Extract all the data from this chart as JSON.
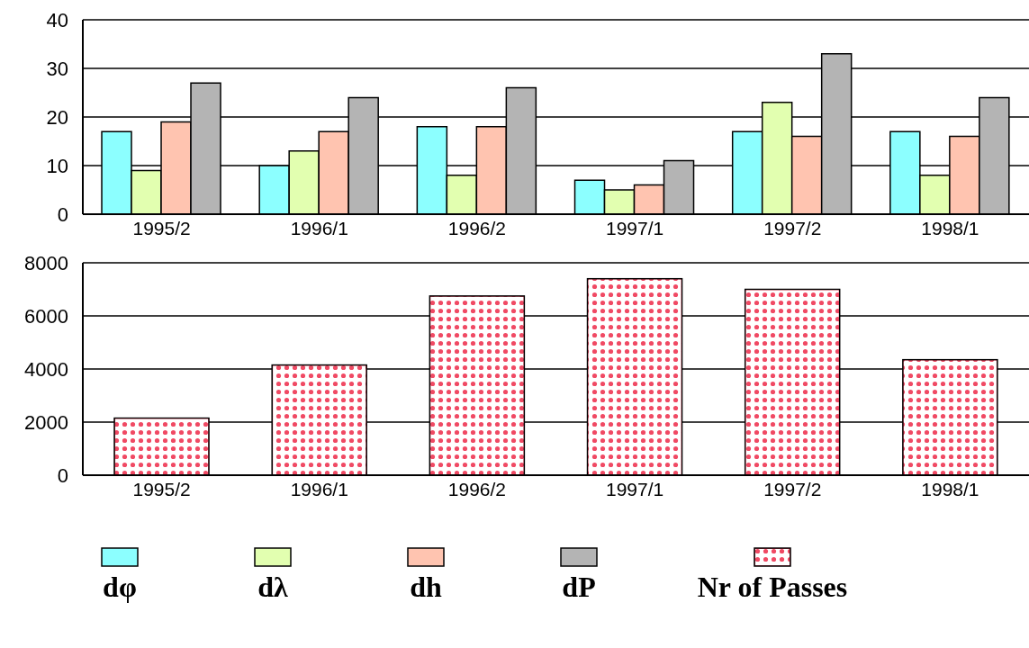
{
  "chart_data": [
    {
      "type": "bar",
      "categories": [
        "1995/2",
        "1996/1",
        "1996/2",
        "1997/1",
        "1997/2",
        "1998/1"
      ],
      "series": [
        {
          "name": "dφ",
          "color": "#8cffff",
          "values": [
            17,
            10,
            18,
            7,
            17,
            17
          ]
        },
        {
          "name": "dλ",
          "color": "#e2ffb0",
          "values": [
            9,
            13,
            8,
            5,
            23,
            8
          ]
        },
        {
          "name": "dh",
          "color": "#ffc4b0",
          "values": [
            19,
            17,
            18,
            6,
            16,
            16
          ]
        },
        {
          "name": "dP",
          "color": "#b4b4b4",
          "values": [
            27,
            24,
            26,
            11,
            33,
            24
          ]
        }
      ],
      "ylim": [
        0,
        40
      ],
      "yticks": [
        0,
        10,
        20,
        30,
        40
      ],
      "grid": "y",
      "legend": "bottom"
    },
    {
      "type": "bar",
      "categories": [
        "1995/2",
        "1996/1",
        "1996/2",
        "1997/1",
        "1997/2",
        "1998/1"
      ],
      "series": [
        {
          "name": "Nr of Passes",
          "color": "#f04a64",
          "values": [
            2150,
            4150,
            6750,
            7400,
            7000,
            4350
          ]
        }
      ],
      "ylim": [
        0,
        8000
      ],
      "yticks": [
        0,
        2000,
        4000,
        6000,
        8000
      ],
      "grid": "y",
      "legend": "bottom"
    }
  ]
}
